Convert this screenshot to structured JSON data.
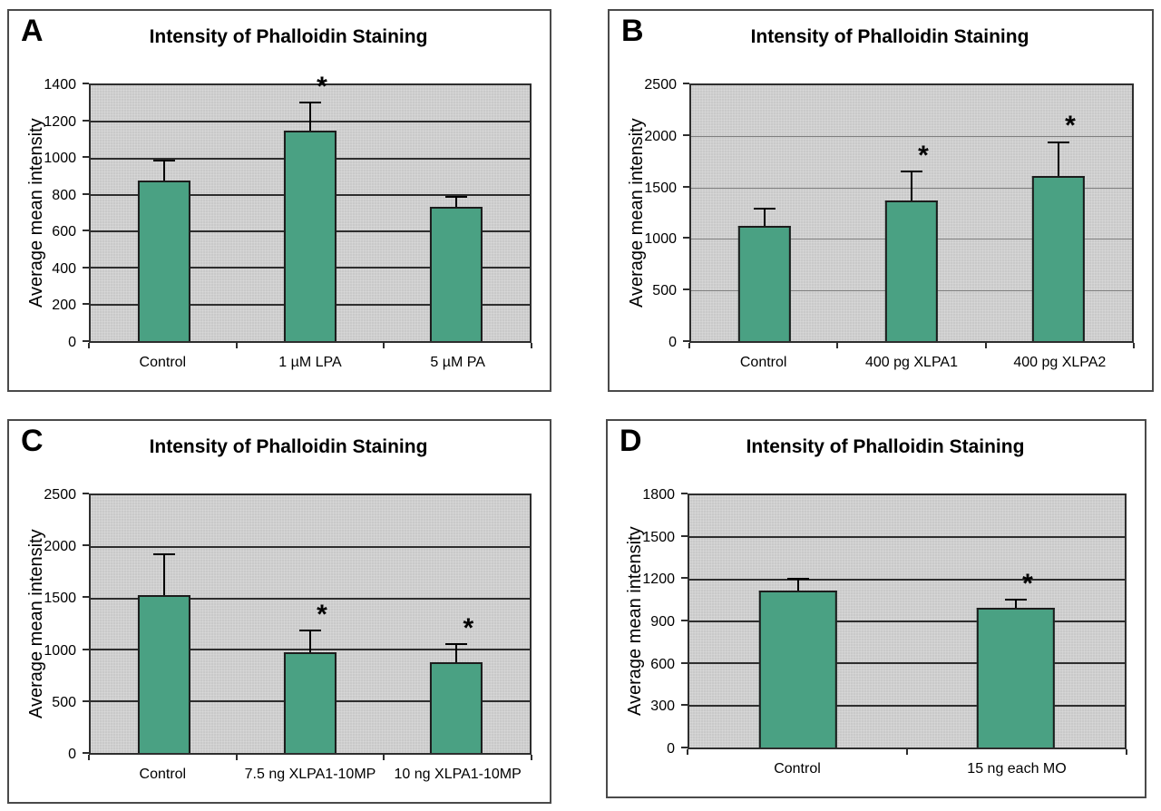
{
  "figure": {
    "title_repeated": "Intensity of Phalloidin Staining",
    "ylabel_repeated": "Average mean intensity"
  },
  "colors": {
    "figure_background": "#ffffff",
    "panel_border": "#4a4a4a",
    "plot_background": "#c9c9c9",
    "grid_dark": "#2e2e2e",
    "grid_light": "#7f7f7f",
    "axis_line": "#2e2e2e",
    "bar_fill": "#4aa183",
    "bar_border": "#1c1c1c",
    "error_bar": "#000000",
    "text": "#000000"
  },
  "chart_data": [
    {
      "id": "A",
      "type": "bar",
      "title": "Intensity of Phalloidin Staining",
      "xlabel": "",
      "ylabel": "Average mean intensity",
      "ylim": [
        0,
        1400
      ],
      "yticks": [
        0,
        200,
        400,
        600,
        800,
        1000,
        1200,
        1400
      ],
      "grid": "on",
      "grid_style": "dark",
      "legend": "none",
      "categories": [
        "Control",
        "1 µM LPA",
        "5 µM PA"
      ],
      "values": [
        880,
        1150,
        735
      ],
      "errors_up": [
        115,
        160,
        60
      ],
      "significance": [
        "",
        "*",
        ""
      ]
    },
    {
      "id": "B",
      "type": "bar",
      "title": "Intensity of Phalloidin Staining",
      "xlabel": "",
      "ylabel": "Average mean intensity",
      "ylim": [
        0,
        2500
      ],
      "yticks": [
        0,
        500,
        1000,
        1500,
        2000,
        2500
      ],
      "grid": "on",
      "grid_style": "light",
      "legend": "none",
      "categories": [
        "Control",
        "400 pg XLPA1",
        "400 pg XLPA2"
      ],
      "values": [
        1130,
        1370,
        1610
      ],
      "errors_up": [
        170,
        300,
        345
      ],
      "significance": [
        "",
        "*",
        "*"
      ]
    },
    {
      "id": "C",
      "type": "bar",
      "title": "Intensity of Phalloidin Staining",
      "xlabel": "",
      "ylabel": "Average mean intensity",
      "ylim": [
        0,
        2500
      ],
      "yticks": [
        0,
        500,
        1000,
        1500,
        2000,
        2500
      ],
      "grid": "on",
      "grid_style": "dark",
      "legend": "none",
      "categories": [
        "Control",
        "7.5 ng XLPA1-10MP",
        "10 ng XLPA1-10MP"
      ],
      "values": [
        1530,
        975,
        880
      ],
      "errors_up": [
        405,
        220,
        185
      ],
      "significance": [
        "",
        "*",
        "*"
      ]
    },
    {
      "id": "D",
      "type": "bar",
      "title": "Intensity of Phalloidin Staining",
      "xlabel": "",
      "ylabel": "Average mean intensity",
      "ylim": [
        0,
        1800
      ],
      "yticks": [
        0,
        300,
        600,
        900,
        1200,
        1500,
        1800
      ],
      "grid": "on",
      "grid_style": "dark",
      "legend": "none",
      "categories": [
        "Control",
        "15 ng each MO"
      ],
      "values": [
        1120,
        1000
      ],
      "errors_up": [
        90,
        65
      ],
      "significance": [
        "",
        "*"
      ]
    }
  ]
}
